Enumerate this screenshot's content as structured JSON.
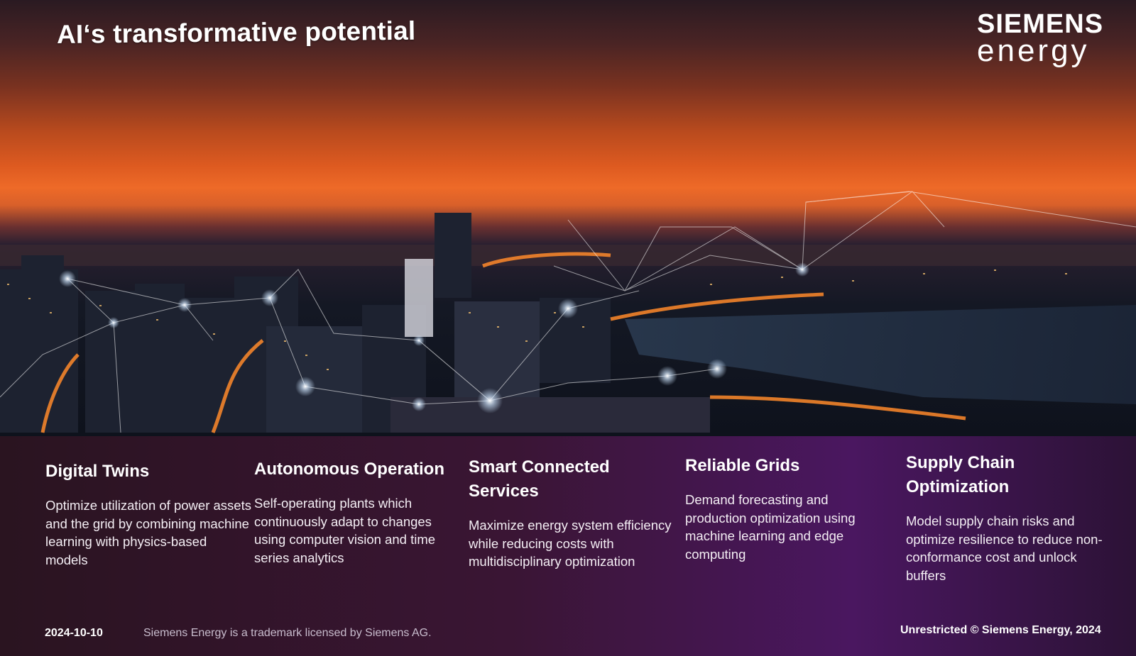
{
  "slide": {
    "title": "AI‘s transformative potential",
    "logo": {
      "line1": "SIEMENS",
      "line2": "energy"
    },
    "pillars": [
      {
        "heading": "Digital Twins",
        "text": "Optimize utilization of power assets and the grid by combining machine learning with physics-based models"
      },
      {
        "heading": "Autonomous Operation",
        "text": "Self-operating plants which continuously adapt to changes using computer vision and time series analytics"
      },
      {
        "heading": "Smart Connected Services",
        "text": "Maximize energy system efficiency while reducing costs with multidisciplinary optimization"
      },
      {
        "heading": "Reliable Grids",
        "text": "Demand forecasting and production optimization using machine learning and edge computing"
      },
      {
        "heading": "Supply Chain Optimization",
        "text": "Model supply chain risks and optimize resilience to reduce non-conformance cost and unlock buffers"
      }
    ],
    "footer": {
      "date": "2024-10-10",
      "trademark": "Siemens Energy is a trademark licensed by Siemens AG.",
      "copyright": "Unrestricted © Siemens Energy, 2024"
    }
  },
  "colors": {
    "sky_orange": "#e0622a",
    "panel_purple": "#4a1760",
    "text": "#ffffff"
  }
}
